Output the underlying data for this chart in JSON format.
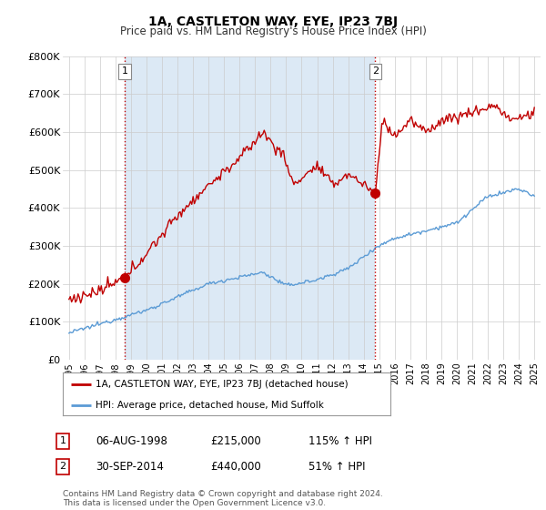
{
  "title": "1A, CASTLETON WAY, EYE, IP23 7BJ",
  "subtitle": "Price paid vs. HM Land Registry's House Price Index (HPI)",
  "ylim": [
    0,
    800000
  ],
  "yticks": [
    0,
    100000,
    200000,
    300000,
    400000,
    500000,
    600000,
    700000,
    800000
  ],
  "ytick_labels": [
    "£0",
    "£100K",
    "£200K",
    "£300K",
    "£400K",
    "£500K",
    "£600K",
    "£700K",
    "£800K"
  ],
  "sale1_date": 1998.59,
  "sale1_price": 215000,
  "sale1_label": "1",
  "sale2_date": 2014.75,
  "sale2_price": 440000,
  "sale2_label": "2",
  "legend_line1": "1A, CASTLETON WAY, EYE, IP23 7BJ (detached house)",
  "legend_line2": "HPI: Average price, detached house, Mid Suffolk",
  "table_row1_num": "1",
  "table_row1_date": "06-AUG-1998",
  "table_row1_price": "£215,000",
  "table_row1_hpi": "115% ↑ HPI",
  "table_row2_num": "2",
  "table_row2_date": "30-SEP-2014",
  "table_row2_price": "£440,000",
  "table_row2_hpi": "51% ↑ HPI",
  "footer": "Contains HM Land Registry data © Crown copyright and database right 2024.\nThis data is licensed under the Open Government Licence v3.0.",
  "hpi_color": "#5b9bd5",
  "price_color": "#c00000",
  "vline_color": "#c00000",
  "shade_color": "#dce9f5",
  "grid_color": "#cccccc",
  "background_color": "#ffffff",
  "xlim_left": 1994.6,
  "xlim_right": 2025.4
}
